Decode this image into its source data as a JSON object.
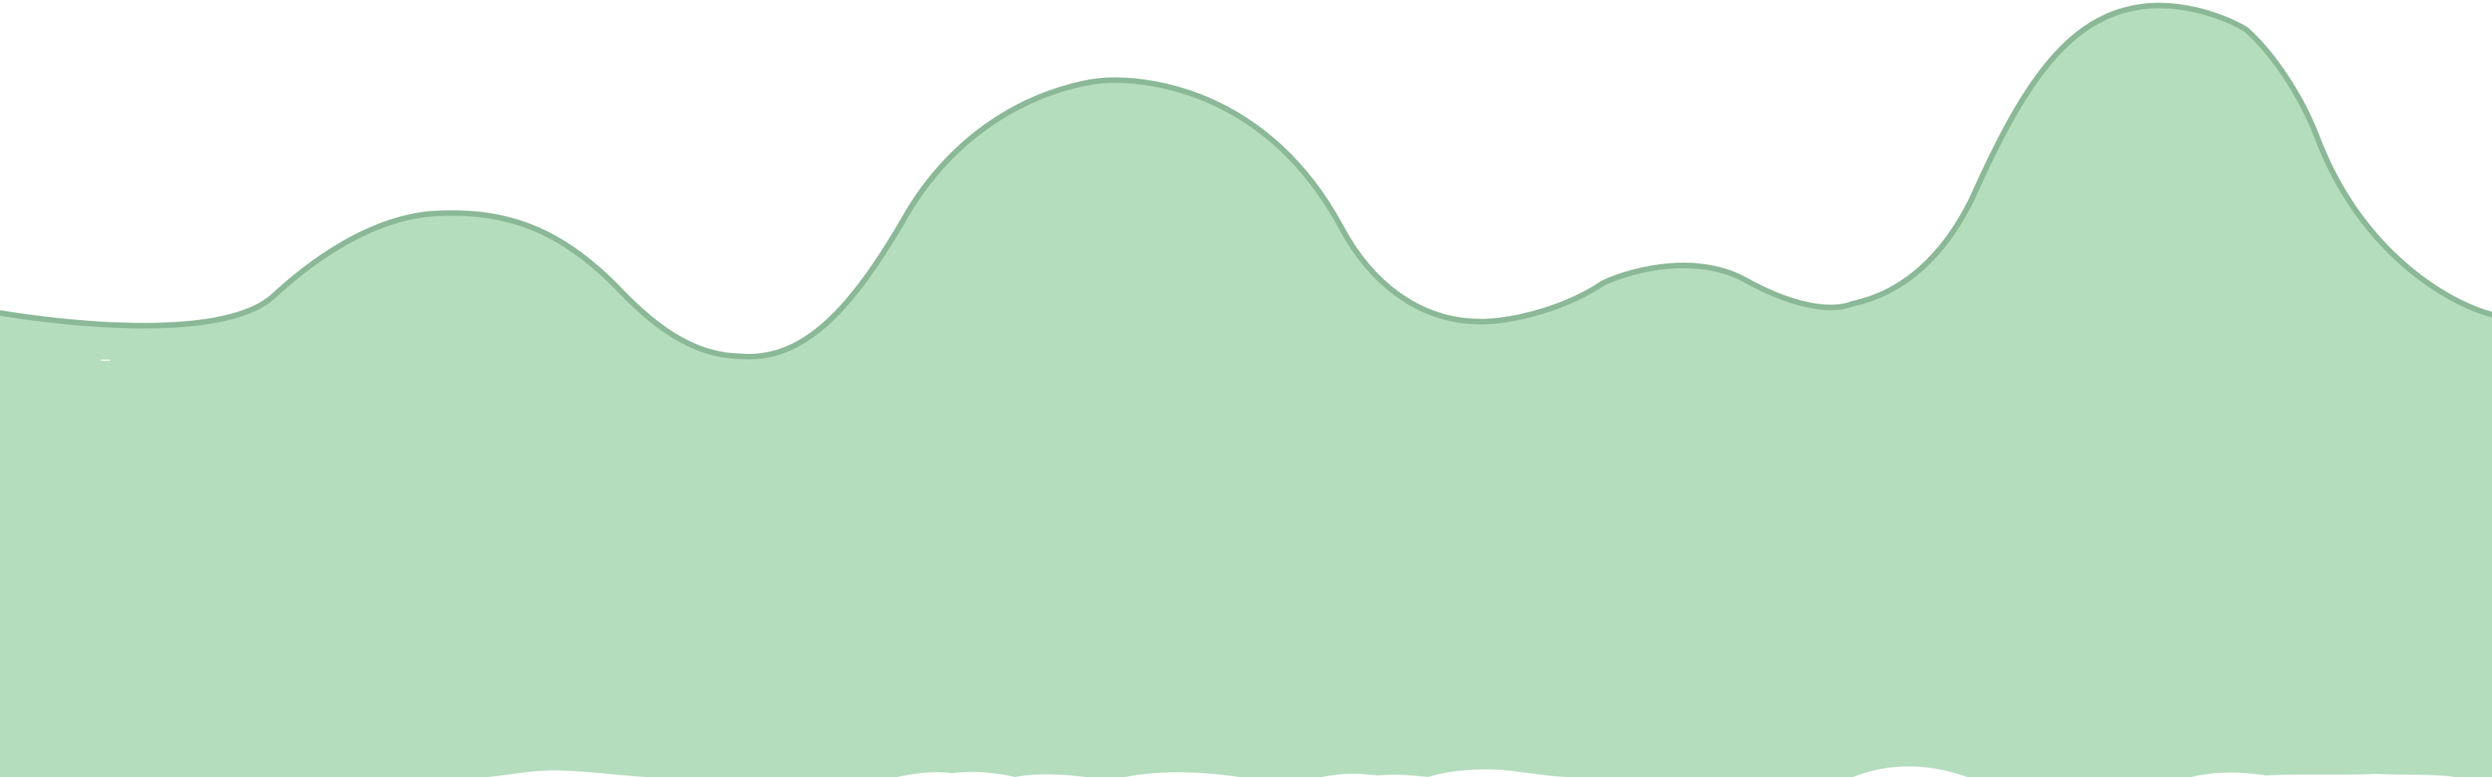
{
  "colors": {
    "background": "#ffffff",
    "hill_fill": "#b4ddbd",
    "hill_fill_top": "#d8ecd9",
    "outline": "#8bb897",
    "edge_wave": "#ffffff"
  },
  "icons": [
    "hill-silhouette"
  ]
}
